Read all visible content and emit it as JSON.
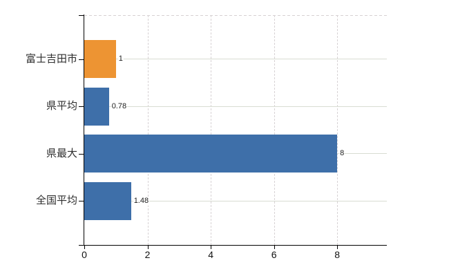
{
  "chart_data": {
    "type": "bar",
    "orientation": "horizontal",
    "title": "",
    "xlabel": "",
    "ylabel": "",
    "categories": [
      "富士吉田市",
      "県平均",
      "県最大",
      "全国平均"
    ],
    "values": [
      1,
      0.78,
      8,
      1.48
    ],
    "value_labels": [
      "1",
      "0.78",
      "8",
      "1.48"
    ],
    "bar_colors": [
      "#ED9433",
      "#3E6FA9",
      "#3E6FA9",
      "#3E6FA9"
    ],
    "highlight_category": "富士吉田市",
    "xlim": [
      0,
      9.57
    ],
    "xticks": [
      0,
      2,
      4,
      6,
      8
    ],
    "xtick_labels": [
      "0",
      "2",
      "4",
      "6",
      "8"
    ],
    "grid": true,
    "legend": false
  },
  "colors": {
    "bar_orange": "#ED9433",
    "bar_blue": "#3E6FA9",
    "axis": "#000000",
    "grid_horizontal": "#D8DCD2",
    "grid_vertical": "#D7D2D4",
    "label_text": "#2E2E2E",
    "value_text": "#1D1D1D",
    "background": "#FFFFFF"
  }
}
